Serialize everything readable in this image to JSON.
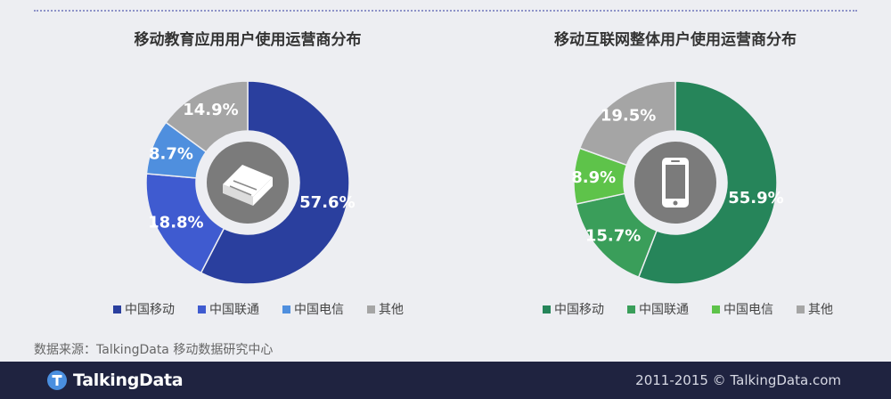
{
  "legend_labels": [
    "中国移动",
    "中国联通",
    "中国电信",
    "其他"
  ],
  "source_text": "数据来源：TalkingData 移动数据研究中心",
  "footer": {
    "brand": "TalkingData",
    "copyright": "2011-2015 © TalkingData.com"
  },
  "chart_data": [
    {
      "type": "pie",
      "variant": "donut",
      "title": "移动教育应用用户使用运营商分布",
      "center_icon": "book-icon",
      "categories": [
        "中国移动",
        "中国联通",
        "中国电信",
        "其他"
      ],
      "values": [
        57.6,
        18.8,
        8.7,
        14.9
      ],
      "labels": [
        "57.6%",
        "18.8%",
        "8.7%",
        "14.9%"
      ],
      "unit": "%",
      "colors": [
        "#2a3f9e",
        "#3f5bd0",
        "#4f8fde",
        "#a5a5a5"
      ],
      "legend_position": "bottom"
    },
    {
      "type": "pie",
      "variant": "donut",
      "title": "移动互联网整体用户使用运营商分布",
      "center_icon": "smartphone-icon",
      "categories": [
        "中国移动",
        "中国联通",
        "中国电信",
        "其他"
      ],
      "values": [
        55.9,
        15.7,
        8.9,
        19.5
      ],
      "labels": [
        "55.9%",
        "15.7%",
        "8.9%",
        "19.5%"
      ],
      "unit": "%",
      "colors": [
        "#26855a",
        "#3a9e5a",
        "#5ec34a",
        "#a5a5a5"
      ],
      "legend_position": "bottom"
    }
  ]
}
